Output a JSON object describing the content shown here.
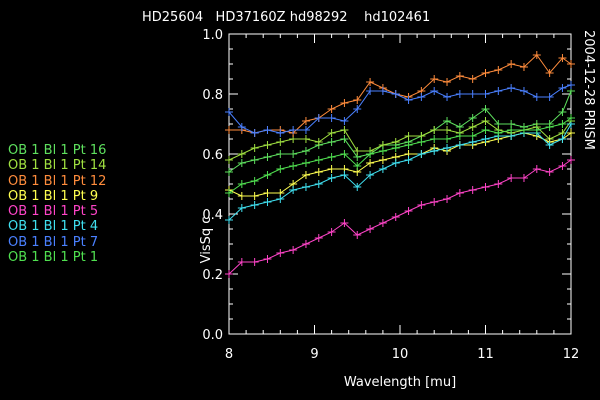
{
  "chart_data": {
    "type": "line",
    "title": "HD25604   HD37160Z hd98292    hd102461",
    "side_label": "2004-12-28 PRISM",
    "xlabel": "Wavelength [mu]",
    "ylabel": "VisSq c",
    "xlim": [
      8,
      12
    ],
    "ylim": [
      0,
      1
    ],
    "x_ticks": [
      "8",
      "9",
      "10",
      "11",
      "12"
    ],
    "y_ticks": [
      "0.0",
      "0.2",
      "0.4",
      "0.6",
      "0.8",
      "1.0"
    ],
    "grid": false,
    "legend_position": "left",
    "x": [
      8.0,
      8.15,
      8.3,
      8.45,
      8.6,
      8.75,
      8.9,
      9.05,
      9.2,
      9.35,
      9.5,
      9.65,
      9.8,
      9.95,
      10.1,
      10.25,
      10.4,
      10.55,
      10.7,
      10.85,
      11.0,
      11.15,
      11.3,
      11.45,
      11.6,
      11.75,
      11.9,
      12.0
    ],
    "series": [
      {
        "name": "OB 1 Bl 1 Pt 16",
        "color": "#5ee05e",
        "values": [
          0.54,
          0.57,
          0.58,
          0.59,
          0.6,
          0.6,
          0.61,
          0.63,
          0.64,
          0.65,
          0.59,
          0.6,
          0.63,
          0.63,
          0.64,
          0.66,
          0.68,
          0.71,
          0.69,
          0.72,
          0.75,
          0.7,
          0.7,
          0.69,
          0.7,
          0.7,
          0.74,
          0.81
        ]
      },
      {
        "name": "OB 1 Bl 1 Pt 14",
        "color": "#a0e040",
        "values": [
          0.58,
          0.6,
          0.62,
          0.63,
          0.64,
          0.65,
          0.65,
          0.64,
          0.67,
          0.68,
          0.61,
          0.61,
          0.63,
          0.64,
          0.66,
          0.66,
          0.68,
          0.68,
          0.67,
          0.69,
          0.71,
          0.68,
          0.67,
          0.68,
          0.69,
          0.65,
          0.67,
          0.71
        ]
      },
      {
        "name": "OB 1 Bl 1 Pt 12",
        "color": "#ff8c3c",
        "values": [
          0.68,
          0.68,
          0.67,
          0.68,
          0.68,
          0.67,
          0.71,
          0.72,
          0.75,
          0.77,
          0.78,
          0.84,
          0.82,
          0.8,
          0.79,
          0.81,
          0.85,
          0.84,
          0.86,
          0.85,
          0.87,
          0.88,
          0.9,
          0.89,
          0.93,
          0.87,
          0.92,
          0.9
        ]
      },
      {
        "name": "OB 1 Bl 1 Pt 9",
        "color": "#ffff50",
        "values": [
          0.48,
          0.46,
          0.46,
          0.47,
          0.47,
          0.5,
          0.53,
          0.54,
          0.55,
          0.55,
          0.54,
          0.57,
          0.58,
          0.59,
          0.6,
          0.6,
          0.62,
          0.61,
          0.63,
          0.63,
          0.64,
          0.65,
          0.66,
          0.67,
          0.66,
          0.64,
          0.65,
          0.67
        ]
      },
      {
        "name": "OB 1 Bl 1 Pt 5",
        "color": "#ff44c8",
        "values": [
          0.2,
          0.24,
          0.24,
          0.25,
          0.27,
          0.28,
          0.3,
          0.32,
          0.34,
          0.37,
          0.33,
          0.35,
          0.37,
          0.39,
          0.41,
          0.43,
          0.44,
          0.45,
          0.47,
          0.48,
          0.49,
          0.5,
          0.52,
          0.52,
          0.55,
          0.54,
          0.56,
          0.58
        ]
      },
      {
        "name": "OB 1 Bl 1 Pt 4",
        "color": "#40e0f0",
        "values": [
          0.38,
          0.42,
          0.43,
          0.44,
          0.45,
          0.48,
          0.49,
          0.5,
          0.52,
          0.53,
          0.49,
          0.53,
          0.55,
          0.57,
          0.58,
          0.6,
          0.61,
          0.62,
          0.63,
          0.64,
          0.65,
          0.66,
          0.66,
          0.67,
          0.67,
          0.63,
          0.65,
          0.7
        ]
      },
      {
        "name": "OB 1 Bl 1 Pt 7",
        "color": "#4a80ff",
        "values": [
          0.74,
          0.69,
          0.67,
          0.68,
          0.67,
          0.68,
          0.68,
          0.72,
          0.72,
          0.71,
          0.75,
          0.81,
          0.81,
          0.8,
          0.78,
          0.79,
          0.81,
          0.79,
          0.8,
          0.8,
          0.8,
          0.81,
          0.82,
          0.81,
          0.79,
          0.79,
          0.82,
          0.83
        ]
      },
      {
        "name": "OB 1 Bl 1 Pt 1",
        "color": "#50e050",
        "values": [
          0.47,
          0.5,
          0.51,
          0.53,
          0.55,
          0.56,
          0.57,
          0.58,
          0.59,
          0.6,
          0.56,
          0.6,
          0.61,
          0.62,
          0.63,
          0.64,
          0.65,
          0.65,
          0.66,
          0.66,
          0.68,
          0.67,
          0.68,
          0.68,
          0.68,
          0.69,
          0.7,
          0.72
        ]
      }
    ]
  }
}
